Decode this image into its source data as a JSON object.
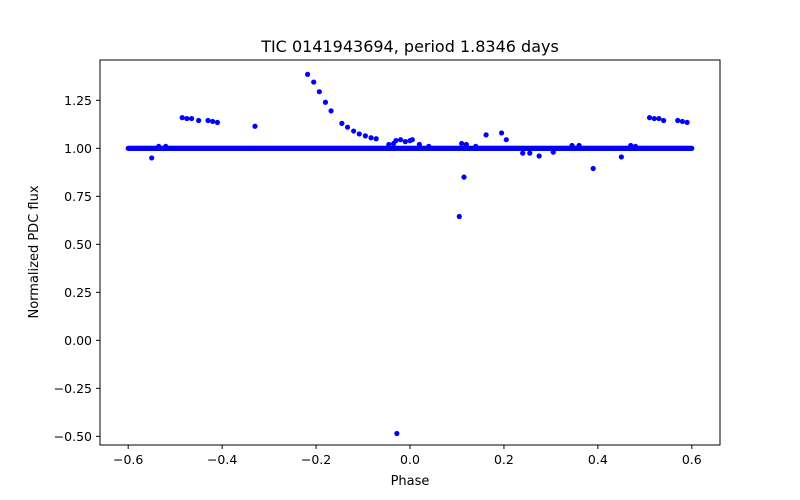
{
  "chart_data": {
    "type": "scatter",
    "title": "TIC 0141943694, period 1.8346 days",
    "xlabel": "Phase",
    "ylabel": "Normalized PDC flux",
    "xlim": [
      -0.66,
      0.66
    ],
    "ylim": [
      -0.545,
      1.46
    ],
    "xticks": [
      -0.6,
      -0.4,
      -0.2,
      0.0,
      0.2,
      0.4,
      0.6
    ],
    "xtick_labels": [
      "−0.6",
      "−0.4",
      "−0.2",
      "0.0",
      "0.2",
      "0.4",
      "0.6"
    ],
    "yticks": [
      -0.5,
      -0.25,
      0.0,
      0.25,
      0.5,
      0.75,
      1.0,
      1.25
    ],
    "ytick_labels": [
      "−0.50",
      "−0.25",
      "0.00",
      "0.25",
      "0.50",
      "0.75",
      "1.00",
      "1.25"
    ],
    "grid": false,
    "legend": "none",
    "marker_color": "#0000ff",
    "baseline": {
      "x_start": -0.6,
      "x_end": 0.6,
      "y": 1.0,
      "count": 800
    },
    "points": [
      {
        "x": -0.55,
        "y": 0.95
      },
      {
        "x": -0.535,
        "y": 1.01
      },
      {
        "x": -0.52,
        "y": 1.01
      },
      {
        "x": -0.485,
        "y": 1.16
      },
      {
        "x": -0.475,
        "y": 1.155
      },
      {
        "x": -0.465,
        "y": 1.155
      },
      {
        "x": -0.45,
        "y": 1.145
      },
      {
        "x": -0.43,
        "y": 1.145
      },
      {
        "x": -0.42,
        "y": 1.14
      },
      {
        "x": -0.41,
        "y": 1.135
      },
      {
        "x": -0.33,
        "y": 1.115
      },
      {
        "x": -0.218,
        "y": 1.385
      },
      {
        "x": -0.205,
        "y": 1.345
      },
      {
        "x": -0.193,
        "y": 1.295
      },
      {
        "x": -0.18,
        "y": 1.24
      },
      {
        "x": -0.168,
        "y": 1.195
      },
      {
        "x": -0.145,
        "y": 1.13
      },
      {
        "x": -0.133,
        "y": 1.11
      },
      {
        "x": -0.12,
        "y": 1.09
      },
      {
        "x": -0.108,
        "y": 1.075
      },
      {
        "x": -0.095,
        "y": 1.065
      },
      {
        "x": -0.083,
        "y": 1.055
      },
      {
        "x": -0.072,
        "y": 1.05
      },
      {
        "x": -0.045,
        "y": 1.02
      },
      {
        "x": -0.035,
        "y": 1.025
      },
      {
        "x": -0.03,
        "y": 1.04
      },
      {
        "x": -0.02,
        "y": 1.045
      },
      {
        "x": -0.01,
        "y": 1.035
      },
      {
        "x": 0.0,
        "y": 1.04
      },
      {
        "x": 0.005,
        "y": 1.045
      },
      {
        "x": 0.02,
        "y": 1.02
      },
      {
        "x": 0.04,
        "y": 1.01
      },
      {
        "x": -0.028,
        "y": -0.485
      },
      {
        "x": 0.105,
        "y": 0.645
      },
      {
        "x": 0.115,
        "y": 0.85
      },
      {
        "x": 0.11,
        "y": 1.025
      },
      {
        "x": 0.12,
        "y": 1.02
      },
      {
        "x": 0.14,
        "y": 1.01
      },
      {
        "x": 0.162,
        "y": 1.07
      },
      {
        "x": 0.195,
        "y": 1.08
      },
      {
        "x": 0.205,
        "y": 1.045
      },
      {
        "x": 0.24,
        "y": 0.975
      },
      {
        "x": 0.255,
        "y": 0.975
      },
      {
        "x": 0.275,
        "y": 0.96
      },
      {
        "x": 0.305,
        "y": 0.98
      },
      {
        "x": 0.345,
        "y": 1.015
      },
      {
        "x": 0.36,
        "y": 1.015
      },
      {
        "x": 0.39,
        "y": 0.895
      },
      {
        "x": 0.45,
        "y": 0.955
      },
      {
        "x": 0.47,
        "y": 1.015
      },
      {
        "x": 0.48,
        "y": 1.01
      },
      {
        "x": 0.51,
        "y": 1.16
      },
      {
        "x": 0.52,
        "y": 1.155
      },
      {
        "x": 0.53,
        "y": 1.155
      },
      {
        "x": 0.54,
        "y": 1.145
      },
      {
        "x": 0.57,
        "y": 1.145
      },
      {
        "x": 0.58,
        "y": 1.14
      },
      {
        "x": 0.59,
        "y": 1.135
      }
    ]
  }
}
